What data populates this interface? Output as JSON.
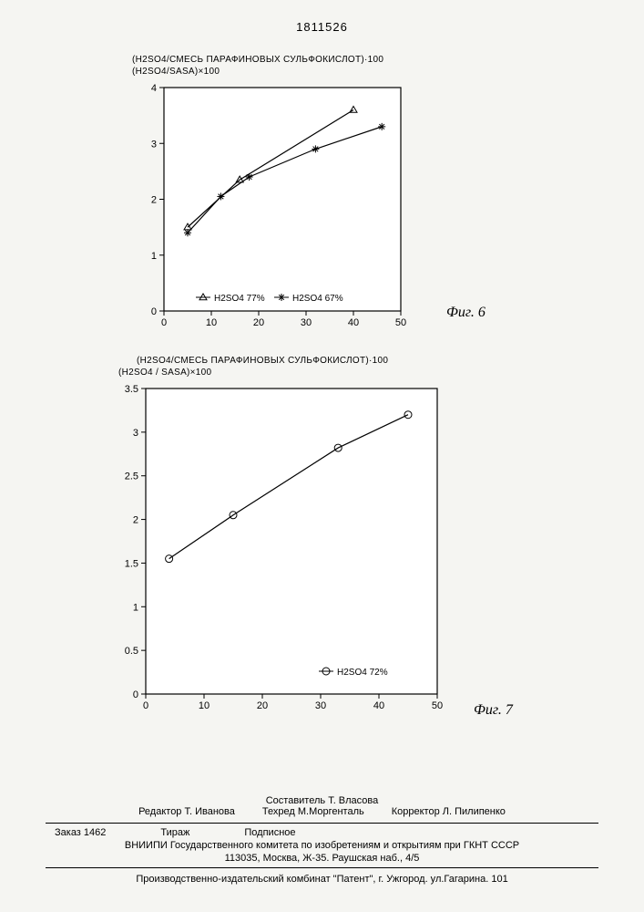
{
  "doc_number": "1811526",
  "chart6": {
    "type": "line",
    "title1": "(H2SO4/СМЕСЬ ПАРАФИНОВЫХ СУЛЬФОКИСЛОТ)·100",
    "title2": "(H2SO4/SASA)×100",
    "xlim": [
      0,
      50
    ],
    "ylim": [
      0,
      4
    ],
    "xticks": [
      0,
      10,
      20,
      30,
      40,
      50
    ],
    "yticks": [
      0,
      1,
      2,
      3,
      4
    ],
    "series": [
      {
        "name": "H2SO4 77%",
        "marker": "triangle",
        "color": "#000000",
        "points": [
          [
            5,
            1.5
          ],
          [
            16,
            2.35
          ],
          [
            40,
            3.6
          ]
        ]
      },
      {
        "name": "H2SO4 67%",
        "marker": "asterisk",
        "color": "#000000",
        "points": [
          [
            5,
            1.4
          ],
          [
            12,
            2.05
          ],
          [
            18,
            2.4
          ],
          [
            32,
            2.9
          ],
          [
            46,
            3.3
          ]
        ]
      }
    ],
    "legend": [
      {
        "marker": "triangle",
        "label": "H2SO4 77%"
      },
      {
        "marker": "asterisk",
        "label": "H2SO4 67%"
      }
    ],
    "fig_label": "Фиг. 6",
    "background_color": "#ffffff",
    "line_width": 1.2
  },
  "chart7": {
    "type": "line",
    "title1": "(H2SO4/СМЕСЬ ПАРАФИНОВЫХ СУЛЬФОКИСЛОТ)·100",
    "title2": "(H2SO4 / SASA)×100",
    "xlim": [
      0,
      50
    ],
    "ylim": [
      0,
      3.5
    ],
    "xticks": [
      0,
      10,
      20,
      30,
      40,
      50
    ],
    "yticks": [
      0,
      0.5,
      1,
      1.5,
      2,
      2.5,
      3,
      3.5
    ],
    "series": [
      {
        "name": "H2SO4 72%",
        "marker": "circle",
        "color": "#000000",
        "points": [
          [
            4,
            1.55
          ],
          [
            15,
            2.05
          ],
          [
            33,
            2.82
          ],
          [
            45,
            3.2
          ]
        ]
      }
    ],
    "legend": [
      {
        "marker": "circle",
        "label": "H2SO4 72%"
      }
    ],
    "fig_label": "Фиг. 7",
    "background_color": "#ffffff",
    "line_width": 1.2
  },
  "footer": {
    "composer_label": "Составитель",
    "composer": "Т. Власова",
    "editor_label": "Редактор",
    "editor": "Т. Иванова",
    "tech_label": "Техред",
    "tech": "М.Моргенталь",
    "corrector_label": "Корректор",
    "corrector": "Л. Пилипенко",
    "order_label": "Заказ",
    "order": "1462",
    "tirage_label": "Тираж",
    "sub_label": "Подписное",
    "org": "ВНИИПИ Государственного комитета по изобретениям и открытиям при ГКНТ СССР",
    "addr": "113035, Москва, Ж-35. Раушская наб., 4/5",
    "publisher": "Производственно-издательский комбинат \"Патент\", г. Ужгород. ул.Гагарина. 101"
  }
}
